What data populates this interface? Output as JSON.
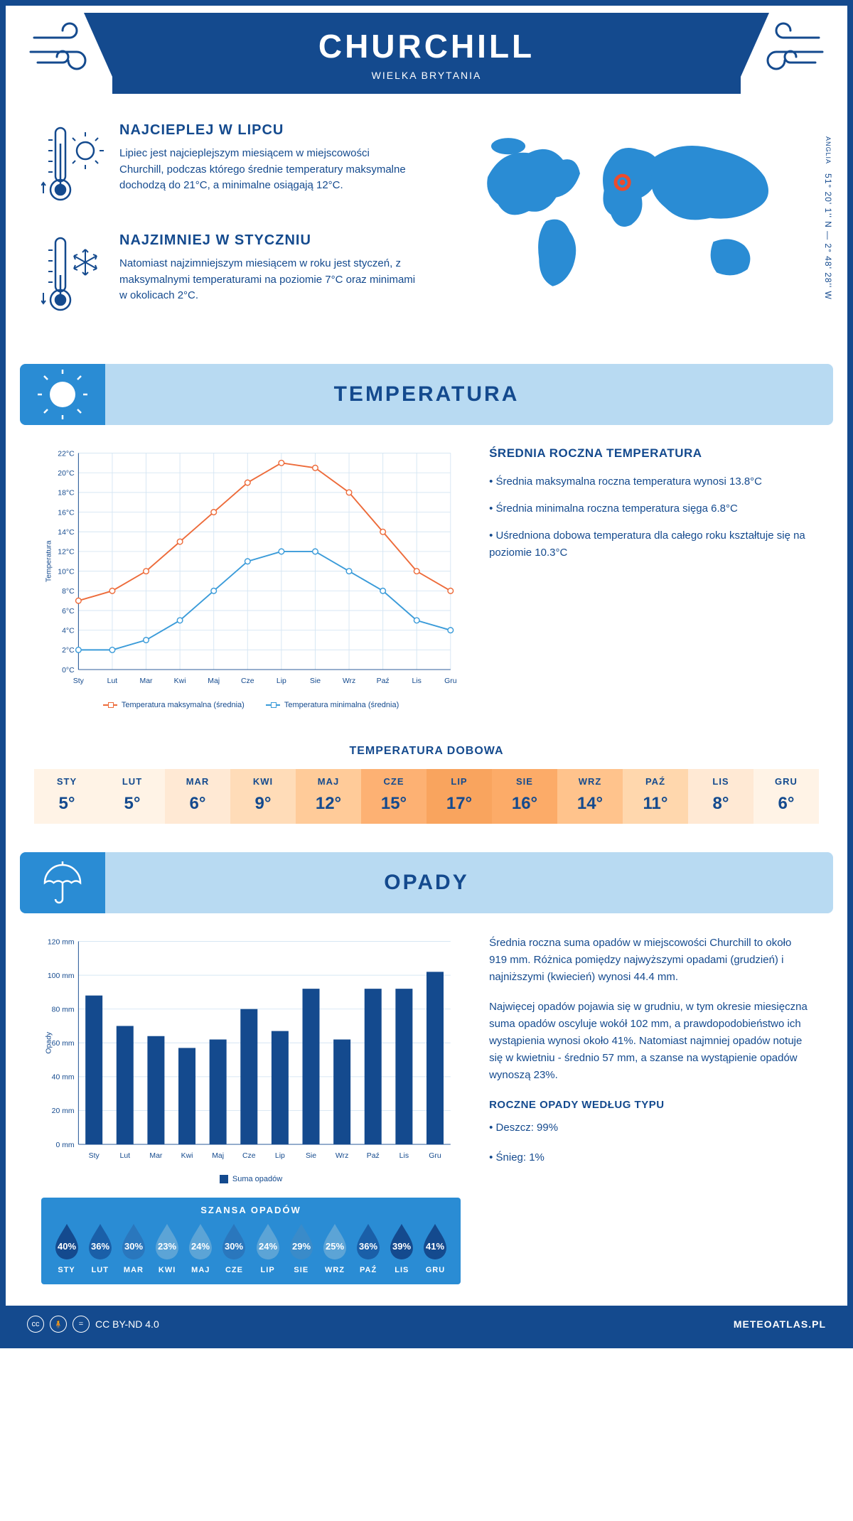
{
  "header": {
    "title": "CHURCHILL",
    "subtitle": "WIELKA BRYTANIA"
  },
  "coords": {
    "lat": "51° 20' 1'' N",
    "lon": "2° 48' 28'' W",
    "region": "ANGLIA"
  },
  "facts": {
    "hot": {
      "title": "NAJCIEPLEJ W LIPCU",
      "text": "Lipiec jest najcieplejszym miesiącem w miejscowości Churchill, podczas którego średnie temperatury maksymalne dochodzą do 21°C, a minimalne osiągają 12°C."
    },
    "cold": {
      "title": "NAJZIMNIEJ W STYCZNIU",
      "text": "Natomiast najzimniejszym miesiącem w roku jest styczeń, z maksymalnymi temperaturami na poziomie 7°C oraz minimami w okolicach 2°C."
    }
  },
  "temp_section": {
    "title": "TEMPERATURA"
  },
  "temp_chart": {
    "type": "line",
    "months": [
      "Sty",
      "Lut",
      "Mar",
      "Kwi",
      "Maj",
      "Cze",
      "Lip",
      "Sie",
      "Wrz",
      "Paź",
      "Lis",
      "Gru"
    ],
    "y_ticks": [
      0,
      2,
      4,
      6,
      8,
      10,
      12,
      14,
      16,
      18,
      20,
      22
    ],
    "y_label": "Temperatura",
    "ylim": [
      0,
      22
    ],
    "series": [
      {
        "name": "Temperatura maksymalna (średnia)",
        "color": "#ed6b3a",
        "values": [
          7,
          8,
          10,
          13,
          16,
          19,
          21,
          20.5,
          18,
          14,
          10,
          8
        ]
      },
      {
        "name": "Temperatura minimalna (średnia)",
        "color": "#3a9bd9",
        "values": [
          2,
          2,
          3,
          5,
          8,
          11,
          12,
          12,
          10,
          8,
          5,
          4
        ]
      }
    ],
    "grid_color": "#d6e6f3",
    "background": "#ffffff",
    "marker_size": 4,
    "line_width": 2
  },
  "temp_info": {
    "title": "ŚREDNIA ROCZNA TEMPERATURA",
    "p1": "• Średnia maksymalna roczna temperatura wynosi 13.8°C",
    "p2": "• Średnia minimalna roczna temperatura sięga 6.8°C",
    "p3": "• Uśredniona dobowa temperatura dla całego roku kształtuje się na poziomie 10.3°C"
  },
  "daily_temp": {
    "title": "TEMPERATURA DOBOWA",
    "months": [
      "STY",
      "LUT",
      "MAR",
      "KWI",
      "MAJ",
      "CZE",
      "LIP",
      "SIE",
      "WRZ",
      "PAŹ",
      "LIS",
      "GRU"
    ],
    "values": [
      "5°",
      "5°",
      "6°",
      "9°",
      "12°",
      "15°",
      "17°",
      "16°",
      "14°",
      "11°",
      "8°",
      "6°"
    ],
    "colors": [
      "#fff3e6",
      "#fff3e6",
      "#ffe9d4",
      "#ffdcb8",
      "#ffcb99",
      "#fdb173",
      "#f9a45e",
      "#fcab68",
      "#ffc38c",
      "#ffd7ad",
      "#ffe9d4",
      "#fff3e6"
    ]
  },
  "precip_section": {
    "title": "OPADY"
  },
  "precip_chart": {
    "type": "bar",
    "months": [
      "Sty",
      "Lut",
      "Mar",
      "Kwi",
      "Maj",
      "Cze",
      "Lip",
      "Sie",
      "Wrz",
      "Paź",
      "Lis",
      "Gru"
    ],
    "values": [
      88,
      70,
      64,
      57,
      62,
      80,
      67,
      92,
      62,
      92,
      92,
      102
    ],
    "y_ticks": [
      0,
      20,
      40,
      60,
      80,
      100,
      120
    ],
    "y_label": "Opady",
    "ylim": [
      0,
      120
    ],
    "bar_color": "#144a8e",
    "grid_color": "#d6e6f3",
    "legend": "Suma opadów",
    "bar_width": 0.55
  },
  "precip_info": {
    "p1": "Średnia roczna suma opadów w miejscowości Churchill to około 919 mm. Różnica pomiędzy najwyższymi opadami (grudzień) i najniższymi (kwiecień) wynosi 44.4 mm.",
    "p2": "Najwięcej opadów pojawia się w grudniu, w tym okresie miesięczna suma opadów oscyluje wokół 102 mm, a prawdopodobieństwo ich wystąpienia wynosi około 41%. Natomiast najmniej opadów notuje się w kwietniu - średnio 57 mm, a szanse na wystąpienie opadów wynoszą 23%.",
    "type_title": "ROCZNE OPADY WEDŁUG TYPU",
    "rain": "• Deszcz: 99%",
    "snow": "• Śnieg: 1%"
  },
  "chance": {
    "title": "SZANSA OPADÓW",
    "months": [
      "STY",
      "LUT",
      "MAR",
      "KWI",
      "MAJ",
      "CZE",
      "LIP",
      "SIE",
      "WRZ",
      "PAŹ",
      "LIS",
      "GRU"
    ],
    "pct": [
      "40%",
      "36%",
      "30%",
      "23%",
      "24%",
      "30%",
      "24%",
      "29%",
      "25%",
      "36%",
      "39%",
      "41%"
    ],
    "colors": [
      "#144a8e",
      "#1a5fa8",
      "#2a77bd",
      "#5ca4d6",
      "#5ca4d6",
      "#2a77bd",
      "#5ca4d6",
      "#3a8bc9",
      "#5ca4d6",
      "#1a5fa8",
      "#144a8e",
      "#144a8e"
    ]
  },
  "footer": {
    "license": "CC BY-ND 4.0",
    "site": "METEOATLAS.PL"
  },
  "palette": {
    "brand": "#144a8e",
    "banner_bg": "#b8daf2",
    "banner_icon_bg": "#2a8cd4"
  }
}
